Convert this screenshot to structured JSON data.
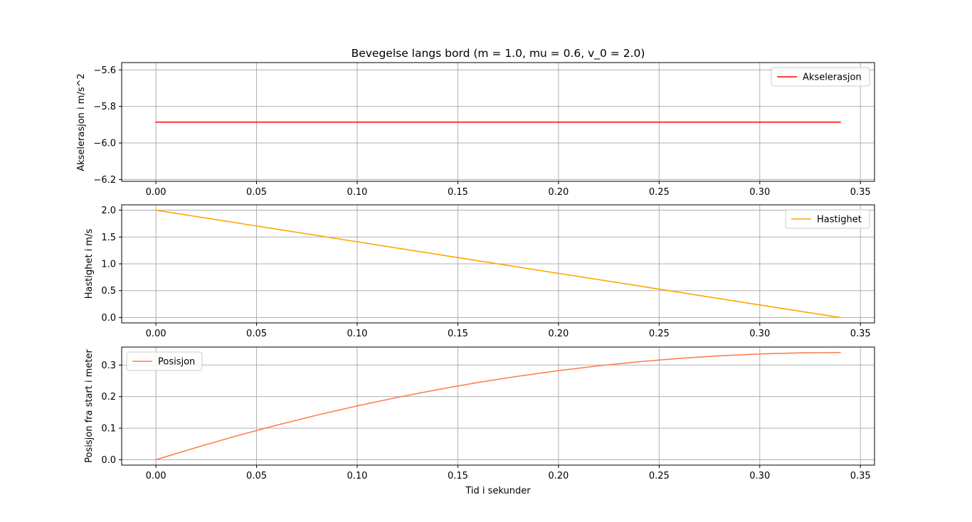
{
  "chart_data": [
    {
      "type": "line",
      "title": "Bevegelse langs bord (m = 1.0, mu = 0.6, v_0 = 2.0)",
      "xlabel": "",
      "ylabel": "Akselerasjon i m/s^2",
      "xlim": [
        -0.017,
        0.357
      ],
      "ylim": [
        -6.21,
        -5.56
      ],
      "xticks": [
        0.0,
        0.05,
        0.1,
        0.15,
        0.2,
        0.25,
        0.3,
        0.35
      ],
      "xtick_labels": [
        "0.00",
        "0.05",
        "0.10",
        "0.15",
        "0.20",
        "0.25",
        "0.30",
        "0.35"
      ],
      "yticks": [
        -6.2,
        -6.0,
        -5.8,
        -5.6
      ],
      "ytick_labels": [
        "−6.2",
        "−6.0",
        "−5.8",
        "−5.6"
      ],
      "grid": true,
      "legend": "top-right",
      "series": [
        {
          "name": "Akselerasjon",
          "color": "#ff0000",
          "x": [
            0.0,
            0.34
          ],
          "y": [
            -5.886,
            -5.886
          ]
        }
      ]
    },
    {
      "type": "line",
      "title": "",
      "xlabel": "",
      "ylabel": "Hastighet i m/s",
      "xlim": [
        -0.017,
        0.357
      ],
      "ylim": [
        -0.1,
        2.1
      ],
      "xticks": [
        0.0,
        0.05,
        0.1,
        0.15,
        0.2,
        0.25,
        0.3,
        0.35
      ],
      "xtick_labels": [
        "0.00",
        "0.05",
        "0.10",
        "0.15",
        "0.20",
        "0.25",
        "0.30",
        "0.35"
      ],
      "yticks": [
        0.0,
        0.5,
        1.0,
        1.5,
        2.0
      ],
      "ytick_labels": [
        "0.0",
        "0.5",
        "1.0",
        "1.5",
        "2.0"
      ],
      "grid": true,
      "legend": "top-right",
      "series": [
        {
          "name": "Hastighet",
          "color": "#ffa500",
          "x": [
            0.0,
            0.05,
            0.1,
            0.15,
            0.2,
            0.25,
            0.3,
            0.34
          ],
          "y": [
            2.0,
            1.706,
            1.411,
            1.117,
            0.823,
            0.529,
            0.234,
            0.0
          ]
        }
      ]
    },
    {
      "type": "line",
      "title": "",
      "xlabel": "Tid i sekunder",
      "ylabel": "Posisjon fra start i meter",
      "xlim": [
        -0.017,
        0.357
      ],
      "ylim": [
        -0.017,
        0.357
      ],
      "xticks": [
        0.0,
        0.05,
        0.1,
        0.15,
        0.2,
        0.25,
        0.3,
        0.35
      ],
      "xtick_labels": [
        "0.00",
        "0.05",
        "0.10",
        "0.15",
        "0.20",
        "0.25",
        "0.30",
        "0.35"
      ],
      "yticks": [
        0.0,
        0.1,
        0.2,
        0.3
      ],
      "ytick_labels": [
        "0.0",
        "0.1",
        "0.2",
        "0.3"
      ],
      "grid": true,
      "legend": "top-left",
      "series": [
        {
          "name": "Posisjon",
          "color": "#ff7f50",
          "x": [
            0.0,
            0.02,
            0.04,
            0.06,
            0.08,
            0.1,
            0.12,
            0.14,
            0.16,
            0.18,
            0.2,
            0.22,
            0.24,
            0.26,
            0.28,
            0.3,
            0.32,
            0.34
          ],
          "y": [
            0.0,
            0.0388,
            0.0753,
            0.1094,
            0.1412,
            0.1706,
            0.1976,
            0.2223,
            0.2447,
            0.2646,
            0.2823,
            0.2976,
            0.3105,
            0.321,
            0.3293,
            0.3351,
            0.3386,
            0.3398
          ]
        }
      ]
    }
  ]
}
